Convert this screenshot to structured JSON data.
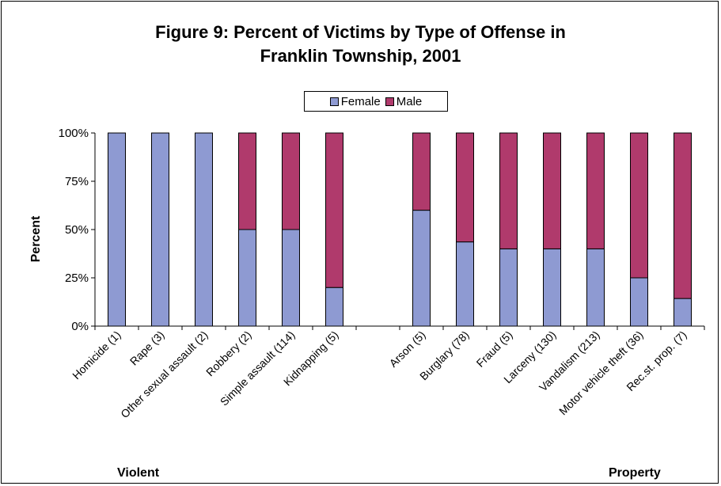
{
  "chart_data": {
    "type": "bar",
    "stacked": true,
    "title": [
      "Figure 9:  Percent of Victims by Type of Offense in",
      "Franklin Township, 2001"
    ],
    "ylabel": "Percent",
    "yticks": [
      "0%",
      "25%",
      "50%",
      "75%",
      "100%"
    ],
    "ylim": [
      0,
      100
    ],
    "legend": {
      "position": "top-center",
      "entries": [
        "Female",
        "Male"
      ]
    },
    "categories": [
      "Homicide (1)",
      "Rape (3)",
      "Other sexual assault (2)",
      "Robbery (2)",
      "Simple assault (114)",
      "Kidnapping (5)",
      "",
      "Arson (5)",
      "Burglary (78)",
      "Fraud (5)",
      "Larceny (130)",
      "Vandalism (213)",
      "Motor vehicle theft (36)",
      "Rec.st. prop. (7)"
    ],
    "series": [
      {
        "name": "Female",
        "color": "#8e9ad2",
        "values": [
          100,
          100,
          100,
          50,
          50,
          20,
          null,
          60,
          43.6,
          40,
          40,
          40,
          25,
          14.3
        ]
      },
      {
        "name": "Male",
        "color": "#b03a6c",
        "values": [
          0,
          0,
          0,
          50,
          50,
          80,
          null,
          40,
          56.4,
          60,
          60,
          60,
          75,
          85.7
        ]
      }
    ],
    "groups": [
      {
        "label": "Violent"
      },
      {
        "label": "Property"
      }
    ]
  }
}
